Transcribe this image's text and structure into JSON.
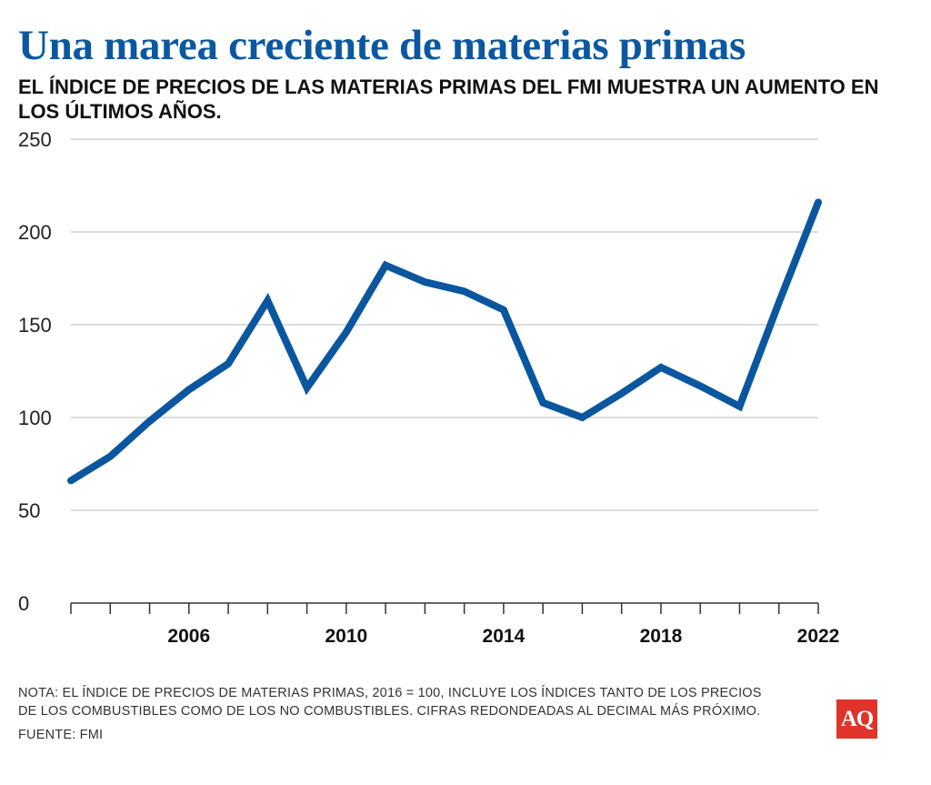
{
  "colors": {
    "title": "#0b58a0",
    "line": "#0a569f",
    "grid": "#c8c8c8",
    "axis": "#333333",
    "logo_bg": "#e0332a"
  },
  "header": {
    "title": "Una marea creciente de materias primas",
    "subtitle": "EL ÍNDICE DE PRECIOS DE LAS MATERIAS PRIMAS DEL FMI MUESTRA UN AUMENTO EN LOS ÚLTIMOS AÑOS."
  },
  "footer": {
    "note_line1": "NOTA: EL ÍNDICE DE PRECIOS DE MATERIAS PRIMAS, 2016 = 100, INCLUYE LOS ÍNDICES TANTO DE LOS PRECIOS",
    "note_line2": "DE LOS COMBUSTIBLES COMO DE LOS NO COMBUSTIBLES. CIFRAS REDONDEADAS AL DECIMAL MÁS PRÓXIMO.",
    "source": "FUENTE: FMI"
  },
  "logo": {
    "text": "AQ"
  },
  "chart_data": {
    "type": "line",
    "title": "Una marea creciente de materias primas",
    "subtitle": "EL ÍNDICE DE PRECIOS DE LAS MATERIAS PRIMAS DEL FMI MUESTRA UN AUMENTO EN LOS ÚLTIMOS AÑOS.",
    "xlabel": "",
    "ylabel": "",
    "x": [
      2003,
      2004,
      2005,
      2006,
      2007,
      2008,
      2009,
      2010,
      2011,
      2012,
      2013,
      2014,
      2015,
      2016,
      2017,
      2018,
      2019,
      2020,
      2021,
      2022
    ],
    "series": [
      {
        "values": [
          66,
          79,
          98,
          115,
          129,
          163,
          116,
          146,
          182,
          173,
          168,
          158,
          108,
          100,
          113,
          127,
          117,
          106,
          162,
          216
        ]
      }
    ],
    "xlim": [
      2003,
      2022
    ],
    "ylim": [
      0,
      250
    ],
    "y_ticks": [
      0,
      50,
      100,
      150,
      200,
      250
    ],
    "x_tick_labels": [
      "2006",
      "2010",
      "2014",
      "2018",
      "2022"
    ],
    "grid": "horizontal",
    "legend": "none"
  }
}
